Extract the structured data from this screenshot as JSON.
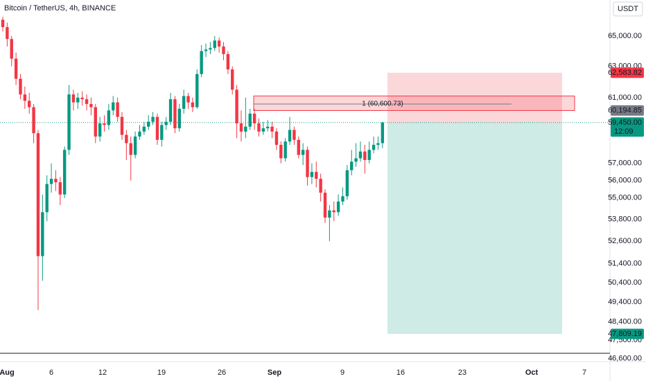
{
  "chart_data": {
    "type": "candlestick",
    "title": "Bitcoin / TetherUS, 4h, BINANCE",
    "currency": "USDT",
    "up_color": "#089981",
    "down_color": "#f23645",
    "log_scale": true,
    "ylim": [
      46130,
      67460
    ],
    "yticks": [
      {
        "value": 65000,
        "label": "65,000.00"
      },
      {
        "value": 63000,
        "label": "63,000.00"
      },
      {
        "value": 61000,
        "label": "61,000.00"
      },
      {
        "value": 57000,
        "label": "57,000.00"
      },
      {
        "value": 56000,
        "label": "56,000.00"
      },
      {
        "value": 55000,
        "label": "55,000.00"
      },
      {
        "value": 53800,
        "label": "53,800.00"
      },
      {
        "value": 52600,
        "label": "52,600.00"
      },
      {
        "value": 51400,
        "label": "51,400.00"
      },
      {
        "value": 50400,
        "label": "50,400.00"
      },
      {
        "value": 49400,
        "label": "49,400.00"
      },
      {
        "value": 48400,
        "label": "48,400.00"
      },
      {
        "value": 47500,
        "label": "47,500.00"
      },
      {
        "value": 46600,
        "label": "46,600.00"
      }
    ],
    "xticks": [
      "Aug",
      "6",
      "12",
      "19",
      "26",
      "Sep",
      "9",
      "16",
      "23",
      "Oct",
      "7"
    ],
    "open": [
      66100,
      65600,
      64800,
      63500,
      62200,
      61200,
      60800,
      60400,
      58800,
      51800,
      54200,
      55800,
      56100,
      55900,
      55200,
      57800,
      61200,
      60700,
      61000,
      60900,
      60600,
      60400,
      58600,
      59400,
      59300,
      60200,
      60700,
      59800,
      58700,
      58200,
      57500,
      58600,
      58900,
      59200,
      59500,
      59800,
      58400,
      59300,
      59500,
      60900,
      59100,
      60300,
      61100,
      60700,
      60400,
      62500,
      64000,
      64100,
      64200,
      64700,
      64300,
      63800,
      62800,
      61500,
      59400,
      58900,
      59200,
      60000,
      59400,
      58900,
      59100,
      59200,
      58900,
      58100,
      57300,
      58300,
      59000,
      58400,
      57500,
      57800,
      56200,
      56500,
      56100,
      55300,
      53900,
      54300,
      54200,
      54800,
      55100,
      56600,
      57100,
      57300,
      57700,
      57200,
      57800,
      58100,
      58200
    ],
    "high": [
      66300,
      65900,
      65000,
      63900,
      62500,
      61700,
      61300,
      60600,
      59000,
      55200,
      56300,
      57000,
      56600,
      56200,
      58000,
      61800,
      61500,
      61300,
      61400,
      61200,
      61000,
      60600,
      59800,
      59900,
      60600,
      61100,
      61000,
      60100,
      59000,
      58600,
      58900,
      59300,
      59500,
      59900,
      60100,
      60000,
      59500,
      59800,
      61300,
      61100,
      60600,
      61500,
      61300,
      61000,
      62800,
      64400,
      64500,
      64600,
      65000,
      64900,
      64600,
      64000,
      63000,
      61800,
      60200,
      61000,
      60300,
      60300,
      59700,
      59500,
      59600,
      59500,
      59100,
      58300,
      58500,
      59800,
      59200,
      58600,
      58200,
      58000,
      57000,
      57100,
      56400,
      55500,
      54600,
      54800,
      55200,
      55600,
      56900,
      57800,
      58200,
      58300,
      58100,
      58300,
      58600,
      58600,
      59500
    ],
    "low": [
      65300,
      64300,
      63000,
      61800,
      60900,
      60300,
      60000,
      58200,
      49000,
      50500,
      53700,
      55300,
      55400,
      54600,
      55000,
      57500,
      60200,
      60300,
      60500,
      60200,
      59900,
      58200,
      58300,
      58900,
      59000,
      59900,
      59500,
      58400,
      57200,
      56000,
      57300,
      58400,
      58700,
      59000,
      59300,
      58100,
      58000,
      59000,
      59300,
      58800,
      58900,
      60000,
      60300,
      60100,
      60300,
      62300,
      63600,
      63800,
      64000,
      63900,
      63400,
      62500,
      61200,
      58500,
      58300,
      58500,
      59000,
      59000,
      58600,
      58700,
      58900,
      58500,
      57800,
      57000,
      57100,
      58100,
      58100,
      57300,
      56900,
      55700,
      55800,
      55600,
      54800,
      53600,
      52600,
      53700,
      54000,
      54600,
      54900,
      56300,
      56800,
      57100,
      56400,
      57000,
      57600,
      57800,
      57900
    ],
    "close": [
      65600,
      64800,
      63500,
      62200,
      61200,
      60800,
      60400,
      58800,
      51800,
      54200,
      55800,
      56100,
      55900,
      55200,
      57800,
      61200,
      60700,
      61000,
      60900,
      60600,
      60400,
      58600,
      59400,
      59300,
      60200,
      60700,
      59800,
      58700,
      58200,
      57500,
      58600,
      58900,
      59200,
      59500,
      59800,
      58400,
      59300,
      59500,
      60900,
      59100,
      60300,
      61100,
      60700,
      60400,
      62500,
      64000,
      64100,
      64200,
      64700,
      64300,
      63800,
      62800,
      61500,
      59400,
      58900,
      59200,
      60000,
      59400,
      58900,
      59100,
      59200,
      58900,
      58100,
      57300,
      58300,
      59000,
      58400,
      57500,
      57800,
      56200,
      56500,
      56100,
      55300,
      53900,
      54300,
      54200,
      54800,
      55100,
      56600,
      57100,
      57300,
      57700,
      57200,
      57800,
      58100,
      58200,
      59450
    ],
    "position": {
      "stop": {
        "value": 62583.82,
        "label": "62,583.82"
      },
      "entry": {
        "value": 59450,
        "label": "59,450.00",
        "countdown": "12:09"
      },
      "target": {
        "value": 47809.19,
        "label": "47,809.19"
      }
    },
    "box": {
      "top": 61100,
      "bottom": {
        "value": 60194.85,
        "label": "60,194.85"
      },
      "level": 60600.73,
      "label": "1 (60,600.73)"
    }
  }
}
